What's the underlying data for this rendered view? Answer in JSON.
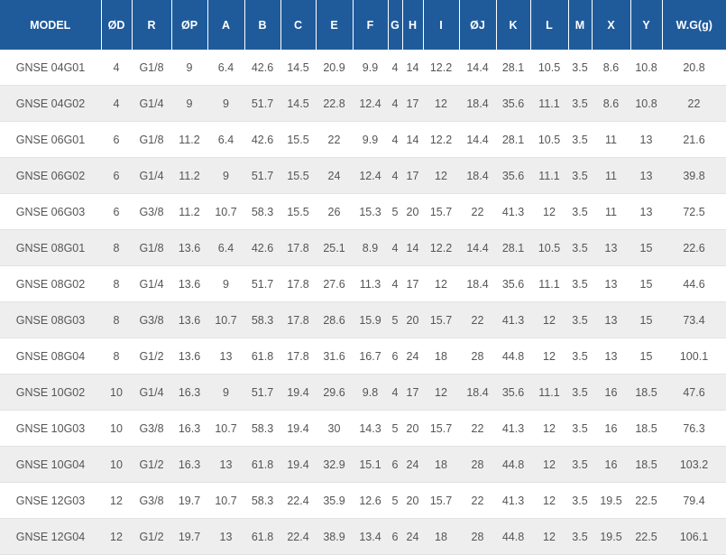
{
  "table": {
    "headers": [
      "MODEL",
      "ØD",
      "R",
      "ØP",
      "A",
      "B",
      "C",
      "E",
      "F",
      "G",
      "H",
      "I",
      "ØJ",
      "K",
      "L",
      "M",
      "X",
      "Y",
      "W.G(g)"
    ],
    "rows": [
      [
        "GNSE 04G01",
        "4",
        "G1/8",
        "9",
        "6.4",
        "42.6",
        "14.5",
        "20.9",
        "9.9",
        "4",
        "14",
        "12.2",
        "14.4",
        "28.1",
        "10.5",
        "3.5",
        "8.6",
        "10.8",
        "20.8"
      ],
      [
        "GNSE 04G02",
        "4",
        "G1/4",
        "9",
        "9",
        "51.7",
        "14.5",
        "22.8",
        "12.4",
        "4",
        "17",
        "12",
        "18.4",
        "35.6",
        "11.1",
        "3.5",
        "8.6",
        "10.8",
        "22"
      ],
      [
        "GNSE 06G01",
        "6",
        "G1/8",
        "11.2",
        "6.4",
        "42.6",
        "15.5",
        "22",
        "9.9",
        "4",
        "14",
        "12.2",
        "14.4",
        "28.1",
        "10.5",
        "3.5",
        "11",
        "13",
        "21.6"
      ],
      [
        "GNSE 06G02",
        "6",
        "G1/4",
        "11.2",
        "9",
        "51.7",
        "15.5",
        "24",
        "12.4",
        "4",
        "17",
        "12",
        "18.4",
        "35.6",
        "11.1",
        "3.5",
        "11",
        "13",
        "39.8"
      ],
      [
        "GNSE 06G03",
        "6",
        "G3/8",
        "11.2",
        "10.7",
        "58.3",
        "15.5",
        "26",
        "15.3",
        "5",
        "20",
        "15.7",
        "22",
        "41.3",
        "12",
        "3.5",
        "11",
        "13",
        "72.5"
      ],
      [
        "GNSE 08G01",
        "8",
        "G1/8",
        "13.6",
        "6.4",
        "42.6",
        "17.8",
        "25.1",
        "8.9",
        "4",
        "14",
        "12.2",
        "14.4",
        "28.1",
        "10.5",
        "3.5",
        "13",
        "15",
        "22.6"
      ],
      [
        "GNSE 08G02",
        "8",
        "G1/4",
        "13.6",
        "9",
        "51.7",
        "17.8",
        "27.6",
        "11.3",
        "4",
        "17",
        "12",
        "18.4",
        "35.6",
        "11.1",
        "3.5",
        "13",
        "15",
        "44.6"
      ],
      [
        "GNSE 08G03",
        "8",
        "G3/8",
        "13.6",
        "10.7",
        "58.3",
        "17.8",
        "28.6",
        "15.9",
        "5",
        "20",
        "15.7",
        "22",
        "41.3",
        "12",
        "3.5",
        "13",
        "15",
        "73.4"
      ],
      [
        "GNSE 08G04",
        "8",
        "G1/2",
        "13.6",
        "13",
        "61.8",
        "17.8",
        "31.6",
        "16.7",
        "6",
        "24",
        "18",
        "28",
        "44.8",
        "12",
        "3.5",
        "13",
        "15",
        "100.1"
      ],
      [
        "GNSE 10G02",
        "10",
        "G1/4",
        "16.3",
        "9",
        "51.7",
        "19.4",
        "29.6",
        "9.8",
        "4",
        "17",
        "12",
        "18.4",
        "35.6",
        "11.1",
        "3.5",
        "16",
        "18.5",
        "47.6"
      ],
      [
        "GNSE 10G03",
        "10",
        "G3/8",
        "16.3",
        "10.7",
        "58.3",
        "19.4",
        "30",
        "14.3",
        "5",
        "20",
        "15.7",
        "22",
        "41.3",
        "12",
        "3.5",
        "16",
        "18.5",
        "76.3"
      ],
      [
        "GNSE 10G04",
        "10",
        "G1/2",
        "16.3",
        "13",
        "61.8",
        "19.4",
        "32.9",
        "15.1",
        "6",
        "24",
        "18",
        "28",
        "44.8",
        "12",
        "3.5",
        "16",
        "18.5",
        "103.2"
      ],
      [
        "GNSE 12G03",
        "12",
        "G3/8",
        "19.7",
        "10.7",
        "58.3",
        "22.4",
        "35.9",
        "12.6",
        "5",
        "20",
        "15.7",
        "22",
        "41.3",
        "12",
        "3.5",
        "19.5",
        "22.5",
        "79.4"
      ],
      [
        "GNSE 12G04",
        "12",
        "G1/2",
        "19.7",
        "13",
        "61.8",
        "22.4",
        "38.9",
        "13.4",
        "6",
        "24",
        "18",
        "28",
        "44.8",
        "12",
        "3.5",
        "19.5",
        "22.5",
        "106.1"
      ]
    ]
  }
}
